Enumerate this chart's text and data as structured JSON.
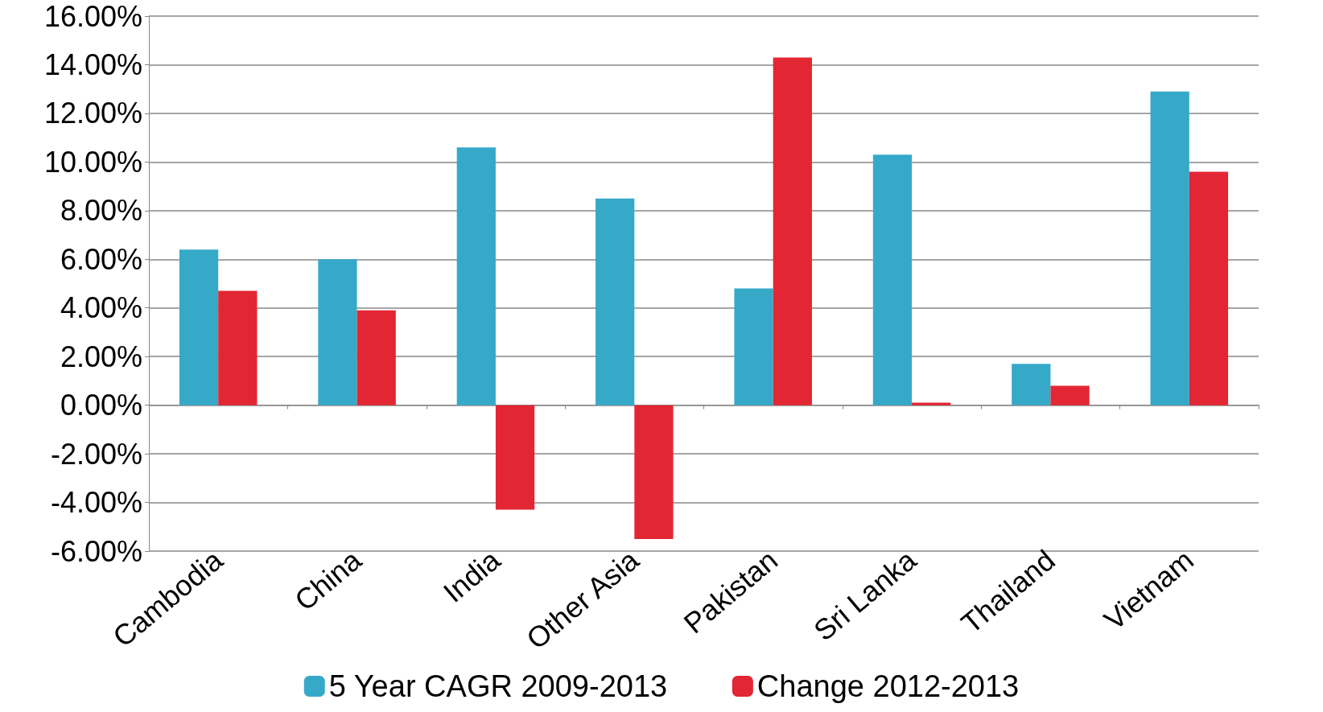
{
  "chart_data": {
    "type": "bar",
    "categories": [
      "Cambodia",
      "China",
      "India",
      "Other Asia",
      "Pakistan",
      "Sri Lanka",
      "Thailand",
      "Vietnam"
    ],
    "series": [
      {
        "name": "5 Year CAGR 2009-2013",
        "color": "#36a9c9",
        "values": [
          6.4,
          6.0,
          10.6,
          8.5,
          4.8,
          10.3,
          1.7,
          12.9
        ]
      },
      {
        "name": "Change 2012-2013",
        "color": "#e32633",
        "values": [
          4.7,
          3.9,
          -4.3,
          -5.5,
          14.3,
          0.1,
          0.8,
          9.6
        ]
      }
    ],
    "ylim": [
      -6,
      16
    ],
    "yticks": [
      {
        "value": -6,
        "label": "-6.00%"
      },
      {
        "value": -4,
        "label": "-4.00%"
      },
      {
        "value": -2,
        "label": "-2.00%"
      },
      {
        "value": 0,
        "label": "0.00%"
      },
      {
        "value": 2,
        "label": "2.00%"
      },
      {
        "value": 4,
        "label": "4.00%"
      },
      {
        "value": 6,
        "label": "6.00%"
      },
      {
        "value": 8,
        "label": "8.00%"
      },
      {
        "value": 10,
        "label": "10.00%"
      },
      {
        "value": 12,
        "label": "12.00%"
      },
      {
        "value": 14,
        "label": "14.00%"
      },
      {
        "value": 16,
        "label": "16.00%"
      }
    ],
    "grid": "y",
    "legend": "bottom"
  }
}
